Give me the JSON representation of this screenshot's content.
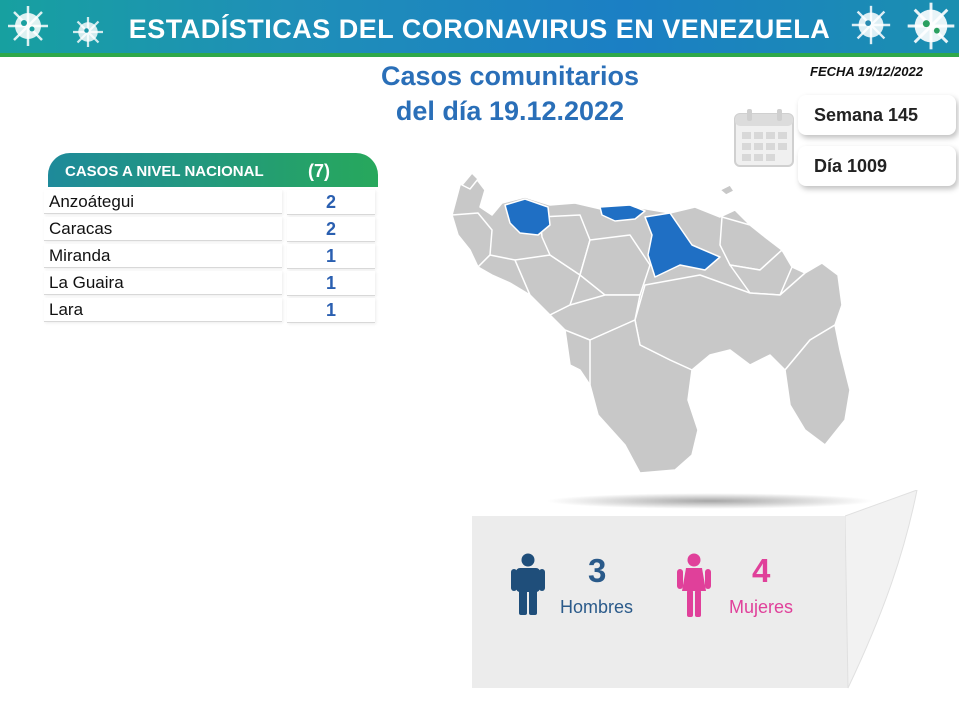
{
  "header": {
    "title": "ESTADÍSTICAS DEL CORONAVIRUS EN VENEZUELA"
  },
  "headline": {
    "line1": "Casos comunitarios",
    "line2": "del día 19.12.2022"
  },
  "date": {
    "label": "FECHA 19/12/2022"
  },
  "counters": {
    "week": "Semana 145",
    "day": "Día 1009"
  },
  "table": {
    "title": "CASOS A NIVEL NACIONAL",
    "total": "(7)",
    "rows": [
      {
        "name": "Anzoátegui",
        "value": "2"
      },
      {
        "name": "Caracas",
        "value": "2"
      },
      {
        "name": "Miranda",
        "value": "1"
      },
      {
        "name": "La Guaira",
        "value": "1"
      },
      {
        "name": "Lara",
        "value": "1"
      }
    ]
  },
  "gender": {
    "men": {
      "count": "3",
      "label": "Hombres"
    },
    "women": {
      "count": "4",
      "label": "Mujeres"
    }
  },
  "colors": {
    "accent": "#2a6fb8",
    "highlight_state": "#1f6fc4",
    "map_gray": "#c8c8c8",
    "men": "#2a5a8a",
    "women": "#e0409a",
    "banner": "#1b7fc4",
    "banner_green": "#2ea84a"
  },
  "icons": [
    "virus-icon",
    "calendar-icon",
    "man-icon",
    "woman-icon"
  ]
}
